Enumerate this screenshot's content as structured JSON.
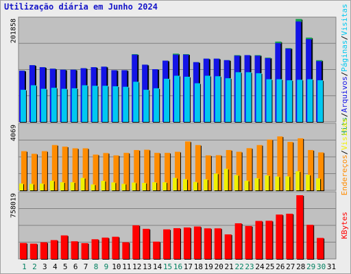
{
  "title": "Utilização diária em Junho 2024",
  "colors": {
    "hits": "#14a050",
    "pages": "#1414e6",
    "visits": "#00c8f0",
    "addresses": "#ff8c00",
    "hosts": "#f0f000",
    "kbytes": "#ff0000",
    "weekend_day": "#008060",
    "weekday": "#000000"
  },
  "chart_data": [
    {
      "type": "bar",
      "panel": "top",
      "tick_label": "201858",
      "right_labels": [
        "Hits",
        "/",
        "Arquivos",
        "/",
        "Páginas",
        "/",
        "Visitas"
      ],
      "categories": [
        "1",
        "2",
        "3",
        "4",
        "5",
        "6",
        "7",
        "8",
        "9",
        "10",
        "11",
        "12",
        "13",
        "14",
        "15",
        "16",
        "17",
        "18",
        "19",
        "20",
        "21",
        "22",
        "23",
        "24",
        "25",
        "26",
        "27",
        "28",
        "29",
        "30",
        "31"
      ],
      "series": [
        {
          "name": "Hits",
          "values": [
            102000,
            113000,
            109000,
            106000,
            104000,
            104000,
            107000,
            109000,
            110000,
            103000,
            103000,
            135000,
            114000,
            105000,
            122000,
            136000,
            135000,
            119000,
            126000,
            126000,
            123000,
            133000,
            133000,
            133000,
            128000,
            160000,
            147000,
            205000,
            168000,
            123000,
            null
          ]
        },
        {
          "name": "Arquivos",
          "values": [
            102000,
            113000,
            109000,
            106000,
            104000,
            104000,
            107000,
            109000,
            110000,
            103000,
            103000,
            134000,
            114000,
            105000,
            122000,
            134000,
            134000,
            119000,
            126000,
            126000,
            123000,
            132000,
            133000,
            132000,
            127000,
            157000,
            146000,
            200000,
            165000,
            121000,
            null
          ]
        },
        {
          "name": "Páginas",
          "values": [
            64000,
            73000,
            66000,
            68000,
            66000,
            67000,
            73000,
            72000,
            72000,
            71000,
            70000,
            80000,
            64000,
            67000,
            86000,
            92000,
            90000,
            77000,
            92000,
            91000,
            87000,
            99000,
            99000,
            97000,
            85000,
            85000,
            83000,
            84000,
            85000,
            83000,
            null
          ]
        },
        {
          "name": "Visitas",
          "values": [
            64000,
            73000,
            66000,
            68000,
            66000,
            67000,
            73000,
            72000,
            72000,
            71000,
            70000,
            80000,
            64000,
            67000,
            86000,
            92000,
            90000,
            77000,
            92000,
            91000,
            87000,
            99000,
            99000,
            97000,
            85000,
            85000,
            83000,
            84000,
            85000,
            83000,
            null
          ]
        }
      ]
    },
    {
      "type": "bar",
      "panel": "middle",
      "tick_label": "4069",
      "right_labels": [
        "Endereços",
        "/",
        "Visitas"
      ],
      "categories": [
        "1",
        "2",
        "3",
        "4",
        "5",
        "6",
        "7",
        "8",
        "9",
        "10",
        "11",
        "12",
        "13",
        "14",
        "15",
        "16",
        "17",
        "18",
        "19",
        "20",
        "21",
        "22",
        "23",
        "24",
        "25",
        "26",
        "27",
        "28",
        "29",
        "30",
        "31"
      ],
      "series": [
        {
          "name": "Visitas",
          "values": [
            2510,
            2340,
            2510,
            2900,
            2800,
            2690,
            2690,
            2290,
            2390,
            2240,
            2400,
            2580,
            2600,
            2400,
            2400,
            2470,
            3130,
            2900,
            2240,
            2250,
            2580,
            2470,
            2700,
            2900,
            3250,
            3450,
            3100,
            3330,
            2580,
            2430,
            null
          ]
        },
        {
          "name": "Endereços",
          "values": [
            440,
            420,
            440,
            620,
            520,
            520,
            800,
            380,
            610,
            510,
            420,
            500,
            480,
            520,
            520,
            800,
            720,
            540,
            710,
            1080,
            1380,
            980,
            620,
            780,
            960,
            890,
            900,
            1220,
            1000,
            770,
            null
          ]
        }
      ]
    },
    {
      "type": "bar",
      "panel": "bottom",
      "tick_label": "758019",
      "right_labels": [
        "KBytes"
      ],
      "categories": [
        "1",
        "2",
        "3",
        "4",
        "5",
        "6",
        "7",
        "8",
        "9",
        "10",
        "11",
        "12",
        "13",
        "14",
        "15",
        "16",
        "17",
        "18",
        "19",
        "20",
        "21",
        "22",
        "23",
        "24",
        "25",
        "26",
        "27",
        "28",
        "29",
        "30",
        "31"
      ],
      "series": [
        {
          "name": "KBytes",
          "values": [
            190000,
            182000,
            198000,
            224000,
            280000,
            210000,
            188000,
            234000,
            254000,
            264000,
            198000,
            400000,
            358000,
            206000,
            352000,
            366000,
            374000,
            386000,
            364000,
            364000,
            292000,
            424000,
            392000,
            452000,
            454000,
            528000,
            538000,
            758000,
            406000,
            250000,
            null
          ]
        }
      ]
    }
  ],
  "x_labels": [
    {
      "text": "1",
      "weekend": true
    },
    {
      "text": "2",
      "weekend": true
    },
    {
      "text": "3",
      "weekend": false
    },
    {
      "text": "4",
      "weekend": false
    },
    {
      "text": "5",
      "weekend": false
    },
    {
      "text": "6",
      "weekend": false
    },
    {
      "text": "7",
      "weekend": false
    },
    {
      "text": "8",
      "weekend": true
    },
    {
      "text": "9",
      "weekend": true
    },
    {
      "text": "10",
      "weekend": false
    },
    {
      "text": "11",
      "weekend": false
    },
    {
      "text": "12",
      "weekend": false
    },
    {
      "text": "13",
      "weekend": false
    },
    {
      "text": "14",
      "weekend": false
    },
    {
      "text": "15",
      "weekend": true
    },
    {
      "text": "16",
      "weekend": true
    },
    {
      "text": "17",
      "weekend": false
    },
    {
      "text": "18",
      "weekend": false
    },
    {
      "text": "19",
      "weekend": false
    },
    {
      "text": "20",
      "weekend": false
    },
    {
      "text": "21",
      "weekend": false
    },
    {
      "text": "22",
      "weekend": true
    },
    {
      "text": "23",
      "weekend": true
    },
    {
      "text": "24",
      "weekend": false
    },
    {
      "text": "25",
      "weekend": false
    },
    {
      "text": "26",
      "weekend": false
    },
    {
      "text": "27",
      "weekend": false
    },
    {
      "text": "28",
      "weekend": false
    },
    {
      "text": "29",
      "weekend": true
    },
    {
      "text": "30",
      "weekend": true
    },
    {
      "text": "31",
      "weekend": false
    }
  ]
}
